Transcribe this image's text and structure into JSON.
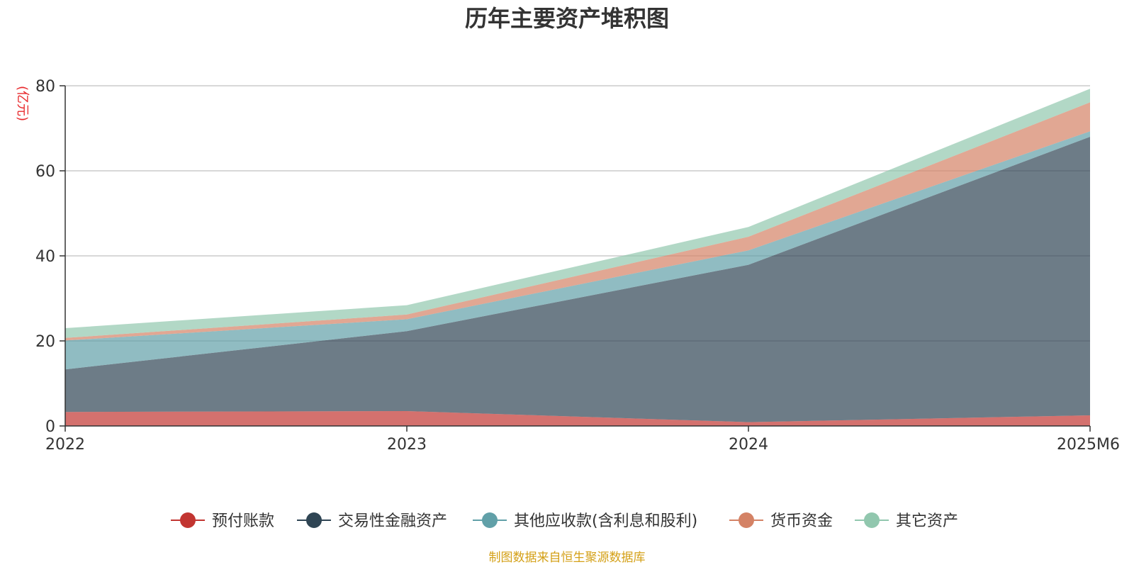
{
  "chart_data": {
    "type": "area",
    "stacked": true,
    "title": "历年主要资产堆积图",
    "unit_label": "(亿元)",
    "xlabel": "",
    "ylabel": "",
    "categories": [
      "2022",
      "2023",
      "2024",
      "2025M6"
    ],
    "ylim": [
      0,
      80
    ],
    "yticks": [
      "0",
      "20",
      "40",
      "60",
      "80"
    ],
    "grid": true,
    "legend_position": "bottom",
    "series": [
      {
        "name": "预付账款",
        "color": "#c23531",
        "values": [
          3.3,
          3.5,
          0.9,
          2.5
        ]
      },
      {
        "name": "交易性金融资产",
        "color": "#2f4554",
        "values": [
          10.0,
          18.8,
          37.0,
          65.5
        ]
      },
      {
        "name": "其他应收款(含利息和股利)",
        "color": "#61a0a8",
        "values": [
          6.8,
          2.8,
          3.4,
          1.3
        ]
      },
      {
        "name": "货币资金",
        "color": "#d48265",
        "values": [
          0.6,
          1.1,
          3.2,
          6.8
        ]
      },
      {
        "name": "其它资产",
        "color": "#91c7ae",
        "values": [
          2.3,
          2.2,
          2.3,
          3.2
        ]
      }
    ]
  },
  "footer": {
    "source": "制图数据来自恒生聚源数据库",
    "source_color": "#d4a017"
  },
  "unit_color": "#e8292c"
}
